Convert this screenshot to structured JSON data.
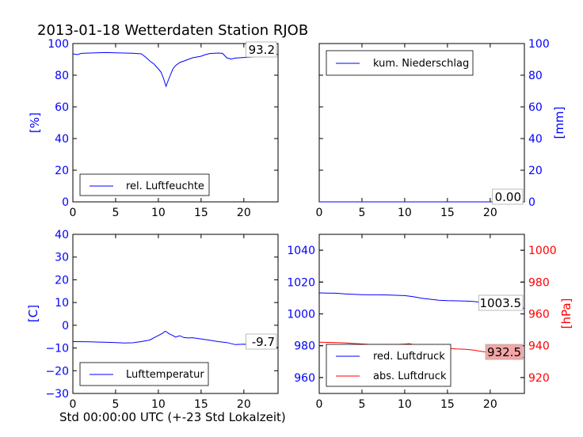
{
  "title": "2013-01-18 Wetterdaten Station RJOB",
  "xlabel": "Std 00:00:00 UTC (+-23 Std Lokalzeit)",
  "colors": {
    "blue": "#0000ff",
    "red": "#ff0000",
    "black": "#000000",
    "redbox": "#f4a6a6"
  },
  "chart_data": [
    {
      "id": "humidity",
      "type": "line",
      "xlim": [
        0,
        24
      ],
      "ylim": [
        0,
        100
      ],
      "ylabel": "[%]",
      "xticks": [
        0,
        5,
        10,
        15,
        20
      ],
      "yticks": [
        0,
        20,
        40,
        60,
        80,
        100
      ],
      "annotation": "93.2",
      "series": [
        {
          "name": "rel. Luftfeuchte",
          "color": "#0000ff",
          "x": [
            0,
            0.5,
            1,
            2,
            3,
            4,
            5,
            6,
            7,
            8,
            8.5,
            9,
            9.5,
            10,
            10.3,
            10.6,
            10.9,
            11.1,
            11.4,
            11.7,
            12,
            12.5,
            13,
            13.5,
            14,
            14.5,
            15,
            15.5,
            16,
            17,
            17.5,
            18,
            18.5,
            19,
            20,
            21,
            22,
            23,
            24
          ],
          "y": [
            93.5,
            93,
            93.8,
            94,
            94.2,
            94.3,
            94.1,
            94,
            93.9,
            93.5,
            91.5,
            89,
            87,
            84,
            82,
            78,
            73,
            76,
            80,
            84,
            86,
            88,
            89,
            90,
            91,
            91.5,
            92,
            93,
            93.7,
            94,
            93.8,
            91,
            90.2,
            90.8,
            91.2,
            91.5,
            92.2,
            92.8,
            93.2
          ]
        }
      ]
    },
    {
      "id": "precip",
      "type": "line",
      "xlim": [
        0,
        24
      ],
      "ylim": [
        0,
        100
      ],
      "ylabel": "[mm]",
      "xticks": [
        0,
        5,
        10,
        15,
        20
      ],
      "yticks": [
        0,
        20,
        40,
        60,
        80,
        100
      ],
      "annotation": "0.00",
      "series": [
        {
          "name": "kum. Niederschlag",
          "color": "#0000ff",
          "x": [
            0,
            24
          ],
          "y": [
            0,
            0
          ]
        }
      ]
    },
    {
      "id": "temperature",
      "type": "line",
      "xlim": [
        0,
        24
      ],
      "ylim": [
        -30,
        40
      ],
      "ylabel": "[C]",
      "xticks": [
        0,
        5,
        10,
        15,
        20
      ],
      "yticks": [
        -30,
        -20,
        -10,
        0,
        10,
        20,
        30,
        40
      ],
      "annotation": "-9.7",
      "series": [
        {
          "name": "Lufttemperatur",
          "color": "#0000ff",
          "x": [
            0,
            2,
            4,
            5,
            6,
            7,
            8,
            9,
            9.5,
            10,
            10.5,
            10.8,
            11,
            11.3,
            11.7,
            12,
            12.5,
            13,
            13.5,
            14,
            15,
            16,
            17,
            18,
            19,
            20,
            21,
            22,
            23,
            24
          ],
          "y": [
            -7.2,
            -7.3,
            -7.5,
            -7.6,
            -7.8,
            -7.7,
            -7.2,
            -6.5,
            -5.5,
            -4.5,
            -3.5,
            -2.6,
            -3,
            -3.8,
            -4.5,
            -5.2,
            -4.6,
            -5.4,
            -5.6,
            -5.5,
            -6,
            -6.6,
            -7.2,
            -7.6,
            -8.5,
            -8.3,
            -8.8,
            -9.2,
            -9.4,
            -9.7
          ]
        }
      ]
    },
    {
      "id": "pressure",
      "type": "line",
      "xlim": [
        0,
        24
      ],
      "ylim": [
        950,
        1050
      ],
      "ylim_right": [
        910,
        1010
      ],
      "ylabel_right": "[hPa]",
      "xticks": [
        0,
        5,
        10,
        15,
        20
      ],
      "yticks": [
        960,
        980,
        1000,
        1020,
        1040
      ],
      "yticks_right": [
        920,
        940,
        960,
        980,
        1000
      ],
      "annotation_red": "1003.5",
      "annotation_abs": "932.5",
      "series": [
        {
          "name": "red. Luftdruck",
          "color": "#0000ff",
          "axis": "left",
          "x": [
            0,
            1,
            2,
            3,
            4,
            5,
            6,
            7,
            8,
            9,
            10,
            11,
            12,
            13,
            14,
            15,
            16,
            17,
            18,
            19,
            20,
            21,
            22,
            23,
            24
          ],
          "y": [
            1013.2,
            1013.1,
            1013,
            1012.6,
            1012.3,
            1012.1,
            1012,
            1012,
            1011.9,
            1011.7,
            1011.5,
            1010.8,
            1009.8,
            1009.2,
            1008.6,
            1008.3,
            1008.2,
            1008.1,
            1007.8,
            1007.2,
            1006.8,
            1005.8,
            1005,
            1004.2,
            1003.5
          ]
        },
        {
          "name": "abs. Luftdruck",
          "color": "#ff0000",
          "axis": "right",
          "x": [
            0,
            1,
            2,
            3,
            4,
            5,
            6,
            7,
            8,
            9,
            10,
            10.5,
            11,
            12,
            13,
            14,
            15,
            16,
            17,
            18,
            19,
            20,
            21,
            22,
            23,
            24
          ],
          "y": [
            942.2,
            942.1,
            942,
            941.8,
            941.4,
            941.1,
            940.8,
            940.7,
            940.8,
            940.8,
            941,
            941.3,
            940.7,
            939.8,
            939.1,
            938.7,
            938.4,
            938,
            937.8,
            937.3,
            936.4,
            935.6,
            934.8,
            934,
            933.2,
            932.5
          ]
        }
      ]
    }
  ]
}
